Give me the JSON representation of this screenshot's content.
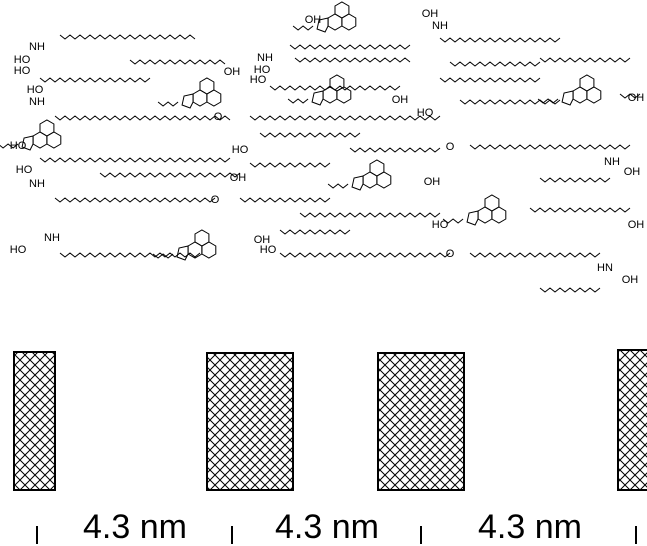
{
  "atom_labels": [
    "OH",
    "OH",
    "NH",
    "NH",
    "OH",
    "HO",
    "HO",
    "NH",
    "HO",
    "HO",
    "HO",
    "NH",
    "OH",
    "HO",
    "O",
    "OH",
    "HO",
    "HO",
    "OH",
    "O",
    "NH",
    "OH",
    "HO",
    "NH",
    "OH",
    "O",
    "HO",
    "OH",
    "NH",
    "HO",
    "OH",
    "HO",
    "O",
    "HN",
    "OH"
  ],
  "spacings": [
    "4.3 nm",
    "4.3 nm",
    "4.3 nm"
  ]
}
